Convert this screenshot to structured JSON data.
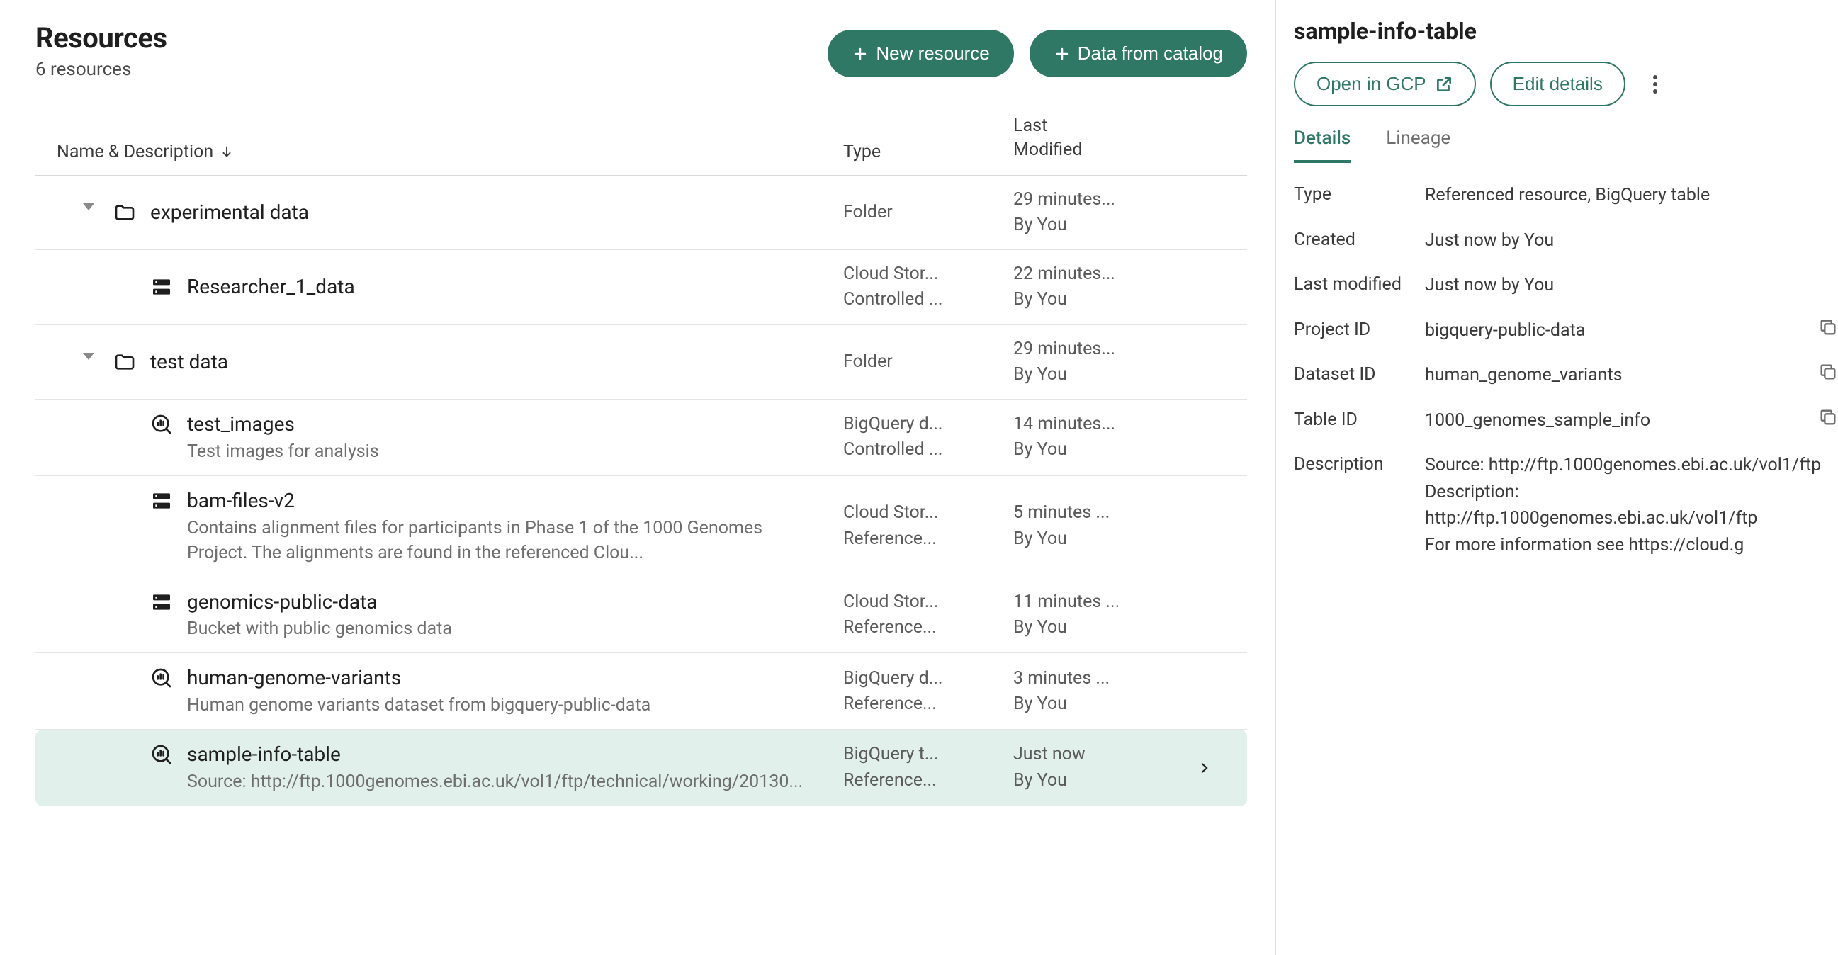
{
  "colors": {
    "primary": "#2f7865",
    "selected_bg": "#e2f0ec",
    "border": "#d9d9d9",
    "text": "#1f1f1f",
    "muted": "#6e6e6e"
  },
  "header": {
    "title": "Resources",
    "count": "6 resources",
    "new_resource_label": "New resource",
    "data_catalog_label": "Data from catalog"
  },
  "columns": {
    "name": "Name & Description",
    "type": "Type",
    "modified": "Last\nModified"
  },
  "rows": [
    {
      "name": "experimental data",
      "desc": "",
      "icon": "folder",
      "indent": 0,
      "caret": true,
      "type1": "Folder",
      "type2": "",
      "mod1": "29 minutes...",
      "mod2": "By You",
      "selected": false
    },
    {
      "name": "Researcher_1_data",
      "desc": "",
      "icon": "storage",
      "indent": 1,
      "caret": false,
      "type1": "Cloud Stor...",
      "type2": "Controlled ...",
      "mod1": "22 minutes...",
      "mod2": "By You",
      "selected": false
    },
    {
      "name": "test data",
      "desc": "",
      "icon": "folder",
      "indent": 0,
      "caret": true,
      "type1": "Folder",
      "type2": "",
      "mod1": "29 minutes...",
      "mod2": "By You",
      "selected": false
    },
    {
      "name": "test_images",
      "desc": "Test images for analysis",
      "icon": "bqsearch",
      "indent": 1,
      "caret": false,
      "type1": "BigQuery d...",
      "type2": "Controlled ...",
      "mod1": "14 minutes...",
      "mod2": "By You",
      "selected": false
    },
    {
      "name": "bam-files-v2",
      "desc": "Contains alignment files for participants in Phase 1 of the 1000 Genomes Project. The alignments are found in the referenced Clou...",
      "icon": "storage",
      "indent": 1,
      "caret": false,
      "type1": "Cloud Stor...",
      "type2": "Reference...",
      "mod1": "5 minutes ...",
      "mod2": "By You",
      "selected": false
    },
    {
      "name": "genomics-public-data",
      "desc": "Bucket with public genomics data",
      "icon": "storage",
      "indent": 1,
      "caret": false,
      "type1": "Cloud Stor...",
      "type2": "Reference...",
      "mod1": "11 minutes ...",
      "mod2": "By You",
      "selected": false
    },
    {
      "name": "human-genome-variants",
      "desc": "Human genome variants dataset from bigquery-public-data",
      "icon": "bqsearch",
      "indent": 1,
      "caret": false,
      "type1": "BigQuery d...",
      "type2": "Reference...",
      "mod1": "3 minutes ...",
      "mod2": "By You",
      "selected": false
    },
    {
      "name": "sample-info-table",
      "desc": "Source: http://ftp.1000genomes.ebi.ac.uk/vol1/ftp/technical/working/20130...",
      "icon": "bqsearch",
      "indent": 1,
      "caret": false,
      "type1": "BigQuery t...",
      "type2": "Reference...",
      "mod1": "Just now",
      "mod2": "By You",
      "selected": true
    }
  ],
  "side": {
    "title": "sample-info-table",
    "open_gcp_label": "Open in GCP",
    "edit_details_label": "Edit details",
    "tabs": {
      "details": "Details",
      "lineage": "Lineage"
    },
    "details": [
      {
        "label": "Type",
        "value": "Referenced resource, BigQuery table",
        "copy": false,
        "wrap": true
      },
      {
        "label": "Created",
        "value": "Just now by You",
        "copy": false,
        "wrap": true
      },
      {
        "label": "Last modified",
        "value": "Just now by You",
        "copy": false,
        "wrap": true
      },
      {
        "label": "Project ID",
        "value": "bigquery-public-data",
        "copy": true,
        "wrap": false
      },
      {
        "label": "Dataset ID",
        "value": "human_genome_variants",
        "copy": true,
        "wrap": false
      },
      {
        "label": "Table ID",
        "value": "1000_genomes_sample_info",
        "copy": true,
        "wrap": false
      },
      {
        "label": "Description",
        "value": "Source: http://ftp.1000genomes.ebi.ac.uk/vol1/ftp\nDescription: http://ftp.1000genomes.ebi.ac.uk/vol1/ftp\nFor more information see https://cloud.g",
        "copy": false,
        "wrap": true
      }
    ]
  }
}
